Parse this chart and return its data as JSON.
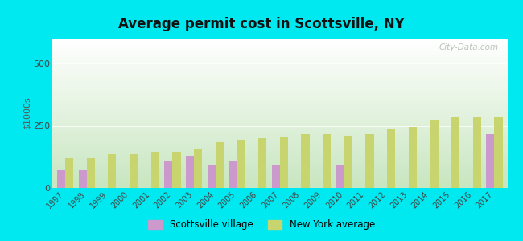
{
  "title": "Average permit cost in Scottsville, NY",
  "ylabel": "$1000s",
  "background_outer": "#00e8f0",
  "background_inner_top": "#ffffff",
  "background_inner_bottom": "#c8e6c0",
  "years": [
    1997,
    1998,
    1999,
    2000,
    2001,
    2002,
    2003,
    2004,
    2005,
    2006,
    2007,
    2008,
    2009,
    2010,
    2011,
    2012,
    2013,
    2014,
    2015,
    2016,
    2017
  ],
  "scottsville": [
    75,
    70,
    0,
    0,
    0,
    105,
    130,
    90,
    110,
    0,
    95,
    0,
    0,
    90,
    0,
    0,
    0,
    0,
    0,
    0,
    215
  ],
  "ny_average": [
    120,
    120,
    135,
    135,
    145,
    145,
    155,
    185,
    195,
    200,
    205,
    215,
    215,
    210,
    215,
    235,
    245,
    275,
    285,
    285,
    285
  ],
  "scottsville_color": "#cc99cc",
  "ny_color": "#c8d46e",
  "ylim": [
    0,
    600
  ],
  "yticks": [
    0,
    250,
    500
  ],
  "watermark": "City-Data.com",
  "legend_scottsville": "Scottsville village",
  "legend_ny": "New York average"
}
